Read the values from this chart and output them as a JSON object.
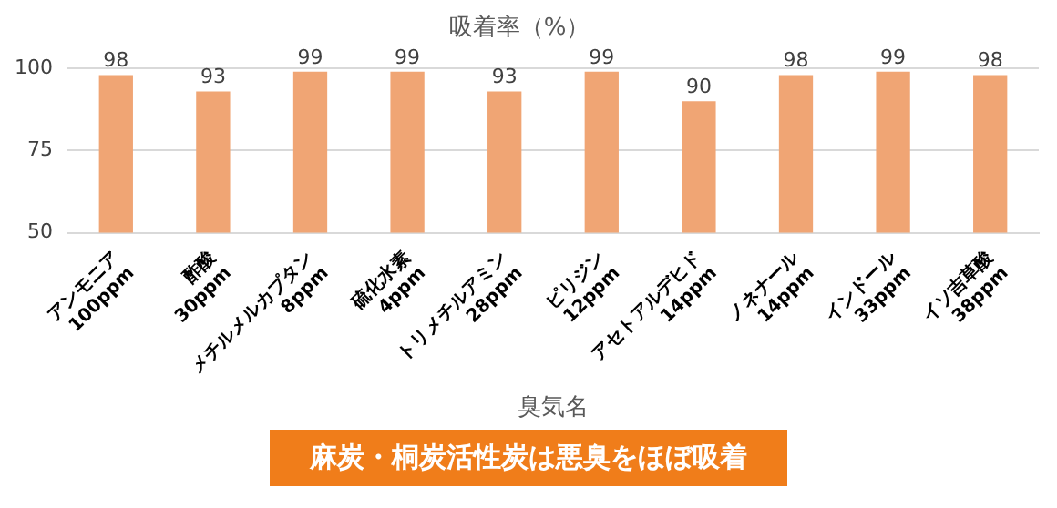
{
  "chart_data": {
    "type": "bar",
    "title": "吸着率（%）",
    "xlabel": "臭気名",
    "categories": [
      "アンモニア\n100ppm",
      "酢酸\n30ppm",
      "メチルメルカプタン\n8ppm",
      "硫化水素\n4ppm",
      "トリメチルアミン\n28ppm",
      "ピリジン\n12ppm",
      "アセトアルデヒド\n14ppm",
      "ノネナール\n14ppm",
      "インドール\n33ppm",
      "イソ吉草酸\n38ppm"
    ],
    "values": [
      98,
      93,
      99,
      99,
      93,
      99,
      90,
      98,
      99,
      98
    ],
    "color": "#f0a574",
    "ylim": [
      50,
      100
    ],
    "yticks": [
      50,
      75,
      100
    ],
    "grid": "y",
    "data_labels": true,
    "legend": false,
    "annotations": [
      "麻炭・桐炭活性炭は悪臭をほぼ吸着"
    ]
  }
}
